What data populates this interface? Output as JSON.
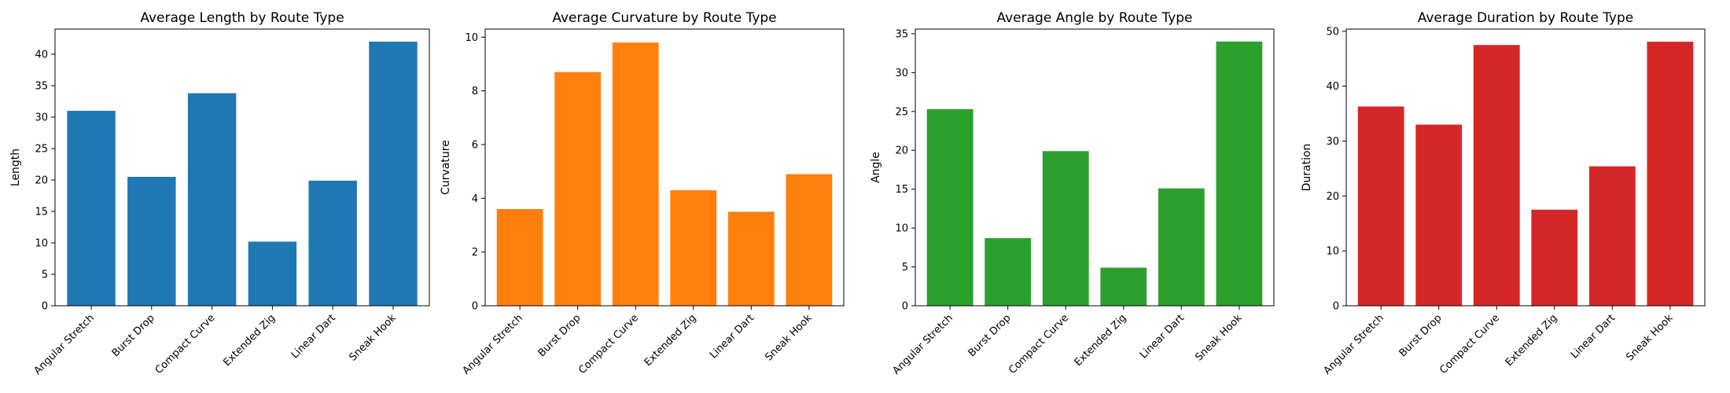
{
  "chart_data": [
    {
      "type": "bar",
      "title": "Average Length by Route Type",
      "xlabel": "",
      "ylabel": "Length",
      "categories": [
        "Angular Stretch",
        "Burst Drop",
        "Compact Curve",
        "Extended Zig",
        "Linear Dart",
        "Sneak Hook"
      ],
      "values": [
        31.0,
        20.5,
        33.8,
        10.2,
        19.9,
        42.0
      ],
      "ylim": [
        0,
        44
      ],
      "yticks": [
        0,
        5,
        10,
        15,
        20,
        25,
        30,
        35,
        40
      ],
      "color": "#1f77b4",
      "grid": false
    },
    {
      "type": "bar",
      "title": "Average Curvature by Route Type",
      "xlabel": "",
      "ylabel": "Curvature",
      "categories": [
        "Angular Stretch",
        "Burst Drop",
        "Compact Curve",
        "Extended Zig",
        "Linear Dart",
        "Sneak Hook"
      ],
      "values": [
        3.6,
        8.7,
        9.8,
        4.3,
        3.5,
        4.9
      ],
      "ylim": [
        0,
        10.3
      ],
      "yticks": [
        0,
        2,
        4,
        6,
        8,
        10
      ],
      "color": "#ff7f0e",
      "grid": false
    },
    {
      "type": "bar",
      "title": "Average Angle by Route Type",
      "xlabel": "",
      "ylabel": "Angle",
      "categories": [
        "Angular Stretch",
        "Burst Drop",
        "Compact Curve",
        "Extended Zig",
        "Linear Dart",
        "Sneak Hook"
      ],
      "values": [
        25.3,
        8.7,
        19.9,
        4.9,
        15.1,
        34.0
      ],
      "ylim": [
        0,
        35.6
      ],
      "yticks": [
        0,
        5,
        10,
        15,
        20,
        25,
        30,
        35
      ],
      "color": "#2ca02c",
      "grid": false
    },
    {
      "type": "bar",
      "title": "Average Duration by Route Type",
      "xlabel": "",
      "ylabel": "Duration",
      "categories": [
        "Angular Stretch",
        "Burst Drop",
        "Compact Curve",
        "Extended Zig",
        "Linear Dart",
        "Sneak Hook"
      ],
      "values": [
        36.3,
        33.0,
        47.5,
        17.5,
        25.4,
        48.1
      ],
      "ylim": [
        0,
        50.4
      ],
      "yticks": [
        0,
        10,
        20,
        30,
        40,
        50
      ],
      "color": "#d62728",
      "grid": false
    }
  ]
}
